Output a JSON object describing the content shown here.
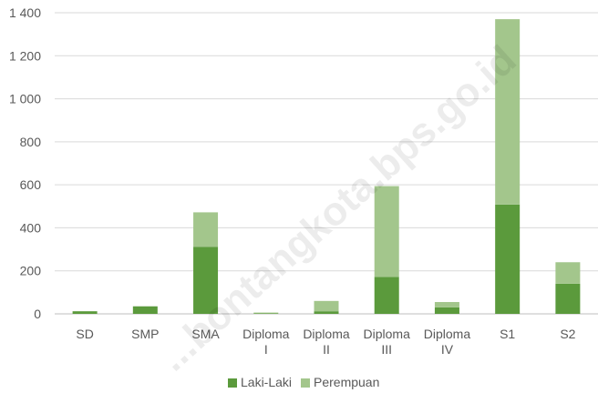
{
  "chart_data": {
    "type": "bar",
    "stacked": true,
    "title": "",
    "xlabel": "",
    "ylabel": "",
    "categories": [
      [
        "SD"
      ],
      [
        "SMP"
      ],
      [
        "SMA"
      ],
      [
        "Diploma",
        "I"
      ],
      [
        "Diploma",
        "II"
      ],
      [
        "Diploma",
        "III"
      ],
      [
        "Diploma",
        "IV"
      ],
      [
        "S1"
      ],
      [
        "S2"
      ]
    ],
    "series": [
      {
        "name": "Laki-Laki",
        "color": "#5b9a3c",
        "values": [
          12,
          35,
          312,
          2,
          12,
          172,
          30,
          508,
          140
        ]
      },
      {
        "name": "Perempuan",
        "color": "#a3c68c",
        "values": [
          0,
          0,
          160,
          4,
          48,
          422,
          25,
          862,
          100
        ]
      }
    ],
    "ylim": [
      0,
      1400
    ],
    "yticks": [
      0,
      200,
      400,
      600,
      800,
      1000,
      1200,
      1400
    ],
    "ytick_labels": [
      "0",
      "200",
      "400",
      "600",
      "800",
      "1 000",
      "1 200",
      "1 400"
    ],
    "grid": true,
    "legend_position": "bottom"
  },
  "watermark": "...bontangkota.bps.go.id"
}
